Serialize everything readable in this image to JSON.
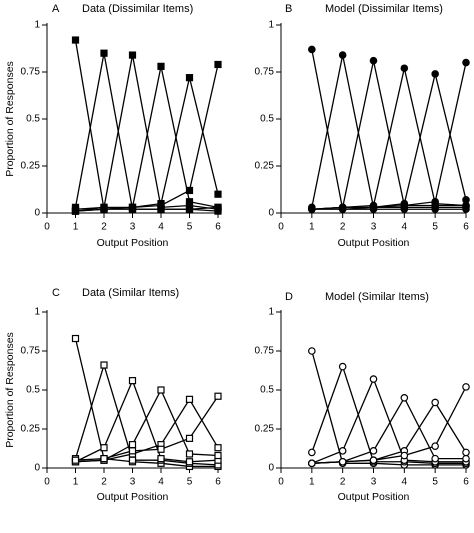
{
  "chart_data": [
    {
      "type": "line",
      "panel_letter": "A",
      "title": "Data (Dissimilar Items)",
      "xlabel": "Output Position",
      "ylabel": "Proportion of Responses",
      "x_ticks": [
        0,
        1,
        2,
        3,
        4,
        5,
        6
      ],
      "y_ticks": [
        "0",
        "0.25",
        "0.5",
        "0.75",
        "1"
      ],
      "xlim": [
        0,
        6
      ],
      "ylim": [
        0,
        1
      ],
      "marker": "filled-square",
      "series": [
        {
          "values": [
            0.92,
            0.02,
            0.02,
            0.02,
            0.02,
            0.01
          ]
        },
        {
          "values": [
            0.03,
            0.85,
            0.02,
            0.02,
            0.02,
            0.03
          ]
        },
        {
          "values": [
            0.02,
            0.03,
            0.84,
            0.03,
            0.04,
            0.02
          ]
        },
        {
          "values": [
            0.01,
            0.02,
            0.03,
            0.78,
            0.06,
            0.03
          ]
        },
        {
          "values": [
            0.01,
            0.02,
            0.03,
            0.05,
            0.72,
            0.1
          ]
        },
        {
          "values": [
            0.01,
            0.03,
            0.03,
            0.04,
            0.12,
            0.79
          ]
        }
      ]
    },
    {
      "type": "line",
      "panel_letter": "B",
      "title": "Model (Dissimilar Items)",
      "xlabel": "Output Position",
      "ylabel": "",
      "x_ticks": [
        0,
        1,
        2,
        3,
        4,
        5,
        6
      ],
      "y_ticks": [
        "0",
        "0.25",
        "0.5",
        "0.75",
        "1"
      ],
      "xlim": [
        0,
        6
      ],
      "ylim": [
        0,
        1
      ],
      "marker": "filled-circle",
      "series": [
        {
          "values": [
            0.87,
            0.02,
            0.02,
            0.02,
            0.02,
            0.02
          ]
        },
        {
          "values": [
            0.03,
            0.84,
            0.03,
            0.03,
            0.03,
            0.03
          ]
        },
        {
          "values": [
            0.02,
            0.03,
            0.81,
            0.04,
            0.04,
            0.04
          ]
        },
        {
          "values": [
            0.02,
            0.03,
            0.04,
            0.77,
            0.05,
            0.04
          ]
        },
        {
          "values": [
            0.02,
            0.03,
            0.03,
            0.05,
            0.74,
            0.07
          ]
        },
        {
          "values": [
            0.02,
            0.02,
            0.03,
            0.04,
            0.06,
            0.8
          ]
        }
      ]
    },
    {
      "type": "line",
      "panel_letter": "C",
      "title": "Data (Similar Items)",
      "xlabel": "Output Position",
      "ylabel": "Proportion of Responses",
      "x_ticks": [
        0,
        1,
        2,
        3,
        4,
        5,
        6
      ],
      "y_ticks": [
        "0",
        "0.25",
        "0.5",
        "0.75",
        "1"
      ],
      "xlim": [
        0,
        6
      ],
      "ylim": [
        0,
        1
      ],
      "marker": "open-square",
      "series": [
        {
          "values": [
            0.83,
            0.06,
            0.04,
            0.03,
            0.01,
            0.01
          ]
        },
        {
          "values": [
            0.06,
            0.66,
            0.05,
            0.05,
            0.03,
            0.02
          ]
        },
        {
          "values": [
            0.04,
            0.13,
            0.56,
            0.06,
            0.04,
            0.05
          ]
        },
        {
          "values": [
            0.04,
            0.05,
            0.15,
            0.5,
            0.09,
            0.08
          ]
        },
        {
          "values": [
            0.04,
            0.05,
            0.09,
            0.15,
            0.44,
            0.13
          ]
        },
        {
          "values": [
            0.05,
            0.06,
            0.11,
            0.12,
            0.19,
            0.46
          ]
        }
      ]
    },
    {
      "type": "line",
      "panel_letter": "D",
      "title": "Model (Similar Items)",
      "xlabel": "Output Position",
      "ylabel": "",
      "x_ticks": [
        0,
        1,
        2,
        3,
        4,
        5,
        6
      ],
      "y_ticks": [
        "0",
        "0.25",
        "0.5",
        "0.75",
        "1"
      ],
      "xlim": [
        0,
        6
      ],
      "ylim": [
        0,
        1
      ],
      "marker": "open-circle",
      "series": [
        {
          "values": [
            0.75,
            0.03,
            0.03,
            0.02,
            0.02,
            0.02
          ]
        },
        {
          "values": [
            0.1,
            0.65,
            0.04,
            0.04,
            0.03,
            0.03
          ]
        },
        {
          "values": [
            0.03,
            0.11,
            0.57,
            0.05,
            0.04,
            0.04
          ]
        },
        {
          "values": [
            0.03,
            0.04,
            0.11,
            0.45,
            0.06,
            0.06
          ]
        },
        {
          "values": [
            0.03,
            0.04,
            0.05,
            0.11,
            0.42,
            0.1
          ]
        },
        {
          "values": [
            0.03,
            0.04,
            0.05,
            0.08,
            0.14,
            0.52
          ]
        }
      ]
    }
  ]
}
